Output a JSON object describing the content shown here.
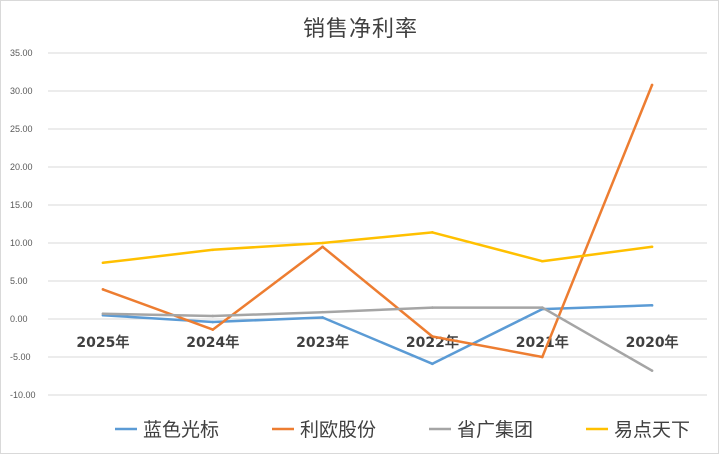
{
  "chart_data": {
    "type": "line",
    "title": "销售净利率",
    "categories": [
      "2025年",
      "2024年",
      "2023年",
      "2022年",
      "2021年",
      "2020年"
    ],
    "ylim": [
      -10,
      35
    ],
    "yticks": [
      "35.00",
      "30.00",
      "25.00",
      "20.00",
      "15.00",
      "10.00",
      "5.00",
      "0.00",
      "-5.00",
      "-10.00"
    ],
    "grid": true,
    "legend_position": "bottom",
    "series": [
      {
        "name": "蓝色光标",
        "color": "#5b9bd5",
        "values": [
          0.5,
          -0.4,
          0.2,
          -5.9,
          1.3,
          1.8
        ]
      },
      {
        "name": "利欧股份",
        "color": "#ed7d31",
        "values": [
          3.9,
          -1.4,
          9.5,
          -2.3,
          -5.0,
          30.8
        ]
      },
      {
        "name": "省广集团",
        "color": "#a5a5a5",
        "values": [
          0.7,
          0.4,
          0.9,
          1.5,
          1.5,
          -6.8
        ]
      },
      {
        "name": "易点天下",
        "color": "#ffc000",
        "values": [
          7.4,
          9.1,
          10.0,
          11.4,
          7.6,
          9.5
        ]
      }
    ]
  }
}
